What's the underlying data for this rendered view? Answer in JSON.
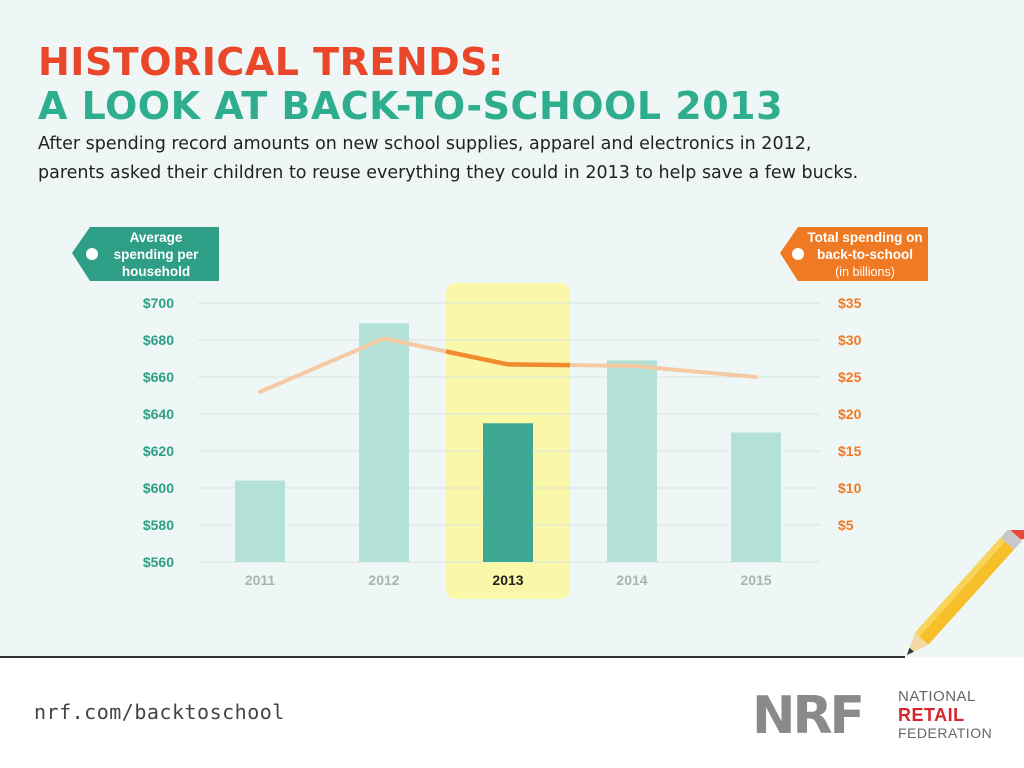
{
  "header": {
    "title_line1": "HISTORICAL TRENDS:",
    "title_line2": "A LOOK AT BACK-TO-SCHOOL 2013",
    "subtitle_line1": "After spending record amounts on new school supplies, apparel and electronics in 2012,",
    "subtitle_line2": "parents asked their children to reuse everything they could in 2013 to help save a few bucks."
  },
  "chart_data": {
    "type": "bar",
    "categories": [
      "2011",
      "2012",
      "2013",
      "2014",
      "2015"
    ],
    "highlight_category": "2013",
    "left_axis": {
      "label_lines": [
        "Average",
        "spending per",
        "household"
      ],
      "ticks": [
        "$700",
        "$680",
        "$660",
        "$640",
        "$620",
        "$600",
        "$580",
        "$560"
      ],
      "ylim": [
        560,
        700
      ]
    },
    "right_axis": {
      "label_lines": [
        "Total spending on",
        "back-to-school",
        "(in billions)"
      ],
      "ticks": [
        "$35",
        "$30",
        "$25",
        "$20",
        "$15",
        "$10",
        "$5"
      ],
      "ylim": [
        0,
        35
      ]
    },
    "series": [
      {
        "type": "bar",
        "axis": "left",
        "values": [
          604,
          689,
          635,
          669,
          630
        ]
      },
      {
        "type": "line",
        "axis": "right",
        "values": [
          23,
          30.2,
          26.7,
          26.5,
          25
        ]
      }
    ],
    "grid": true,
    "colors": {
      "bar": "#b4e1d7",
      "bar_highlight": "#3fa895",
      "line": "#f5c9a2",
      "line_highlight": "#f28a2e",
      "highlight_band": "#fbf7a8",
      "left_axis": "#2e9e86",
      "right_axis": "#f07a23",
      "grid": "#d8e4e1",
      "category": "#a9b5b2"
    }
  },
  "footer": {
    "url": "nrf.com/backtoschool",
    "logo_mark": "NRF",
    "logo_line1": "NATIONAL",
    "logo_line2": "RETAIL",
    "logo_line3": "FEDERATION"
  }
}
